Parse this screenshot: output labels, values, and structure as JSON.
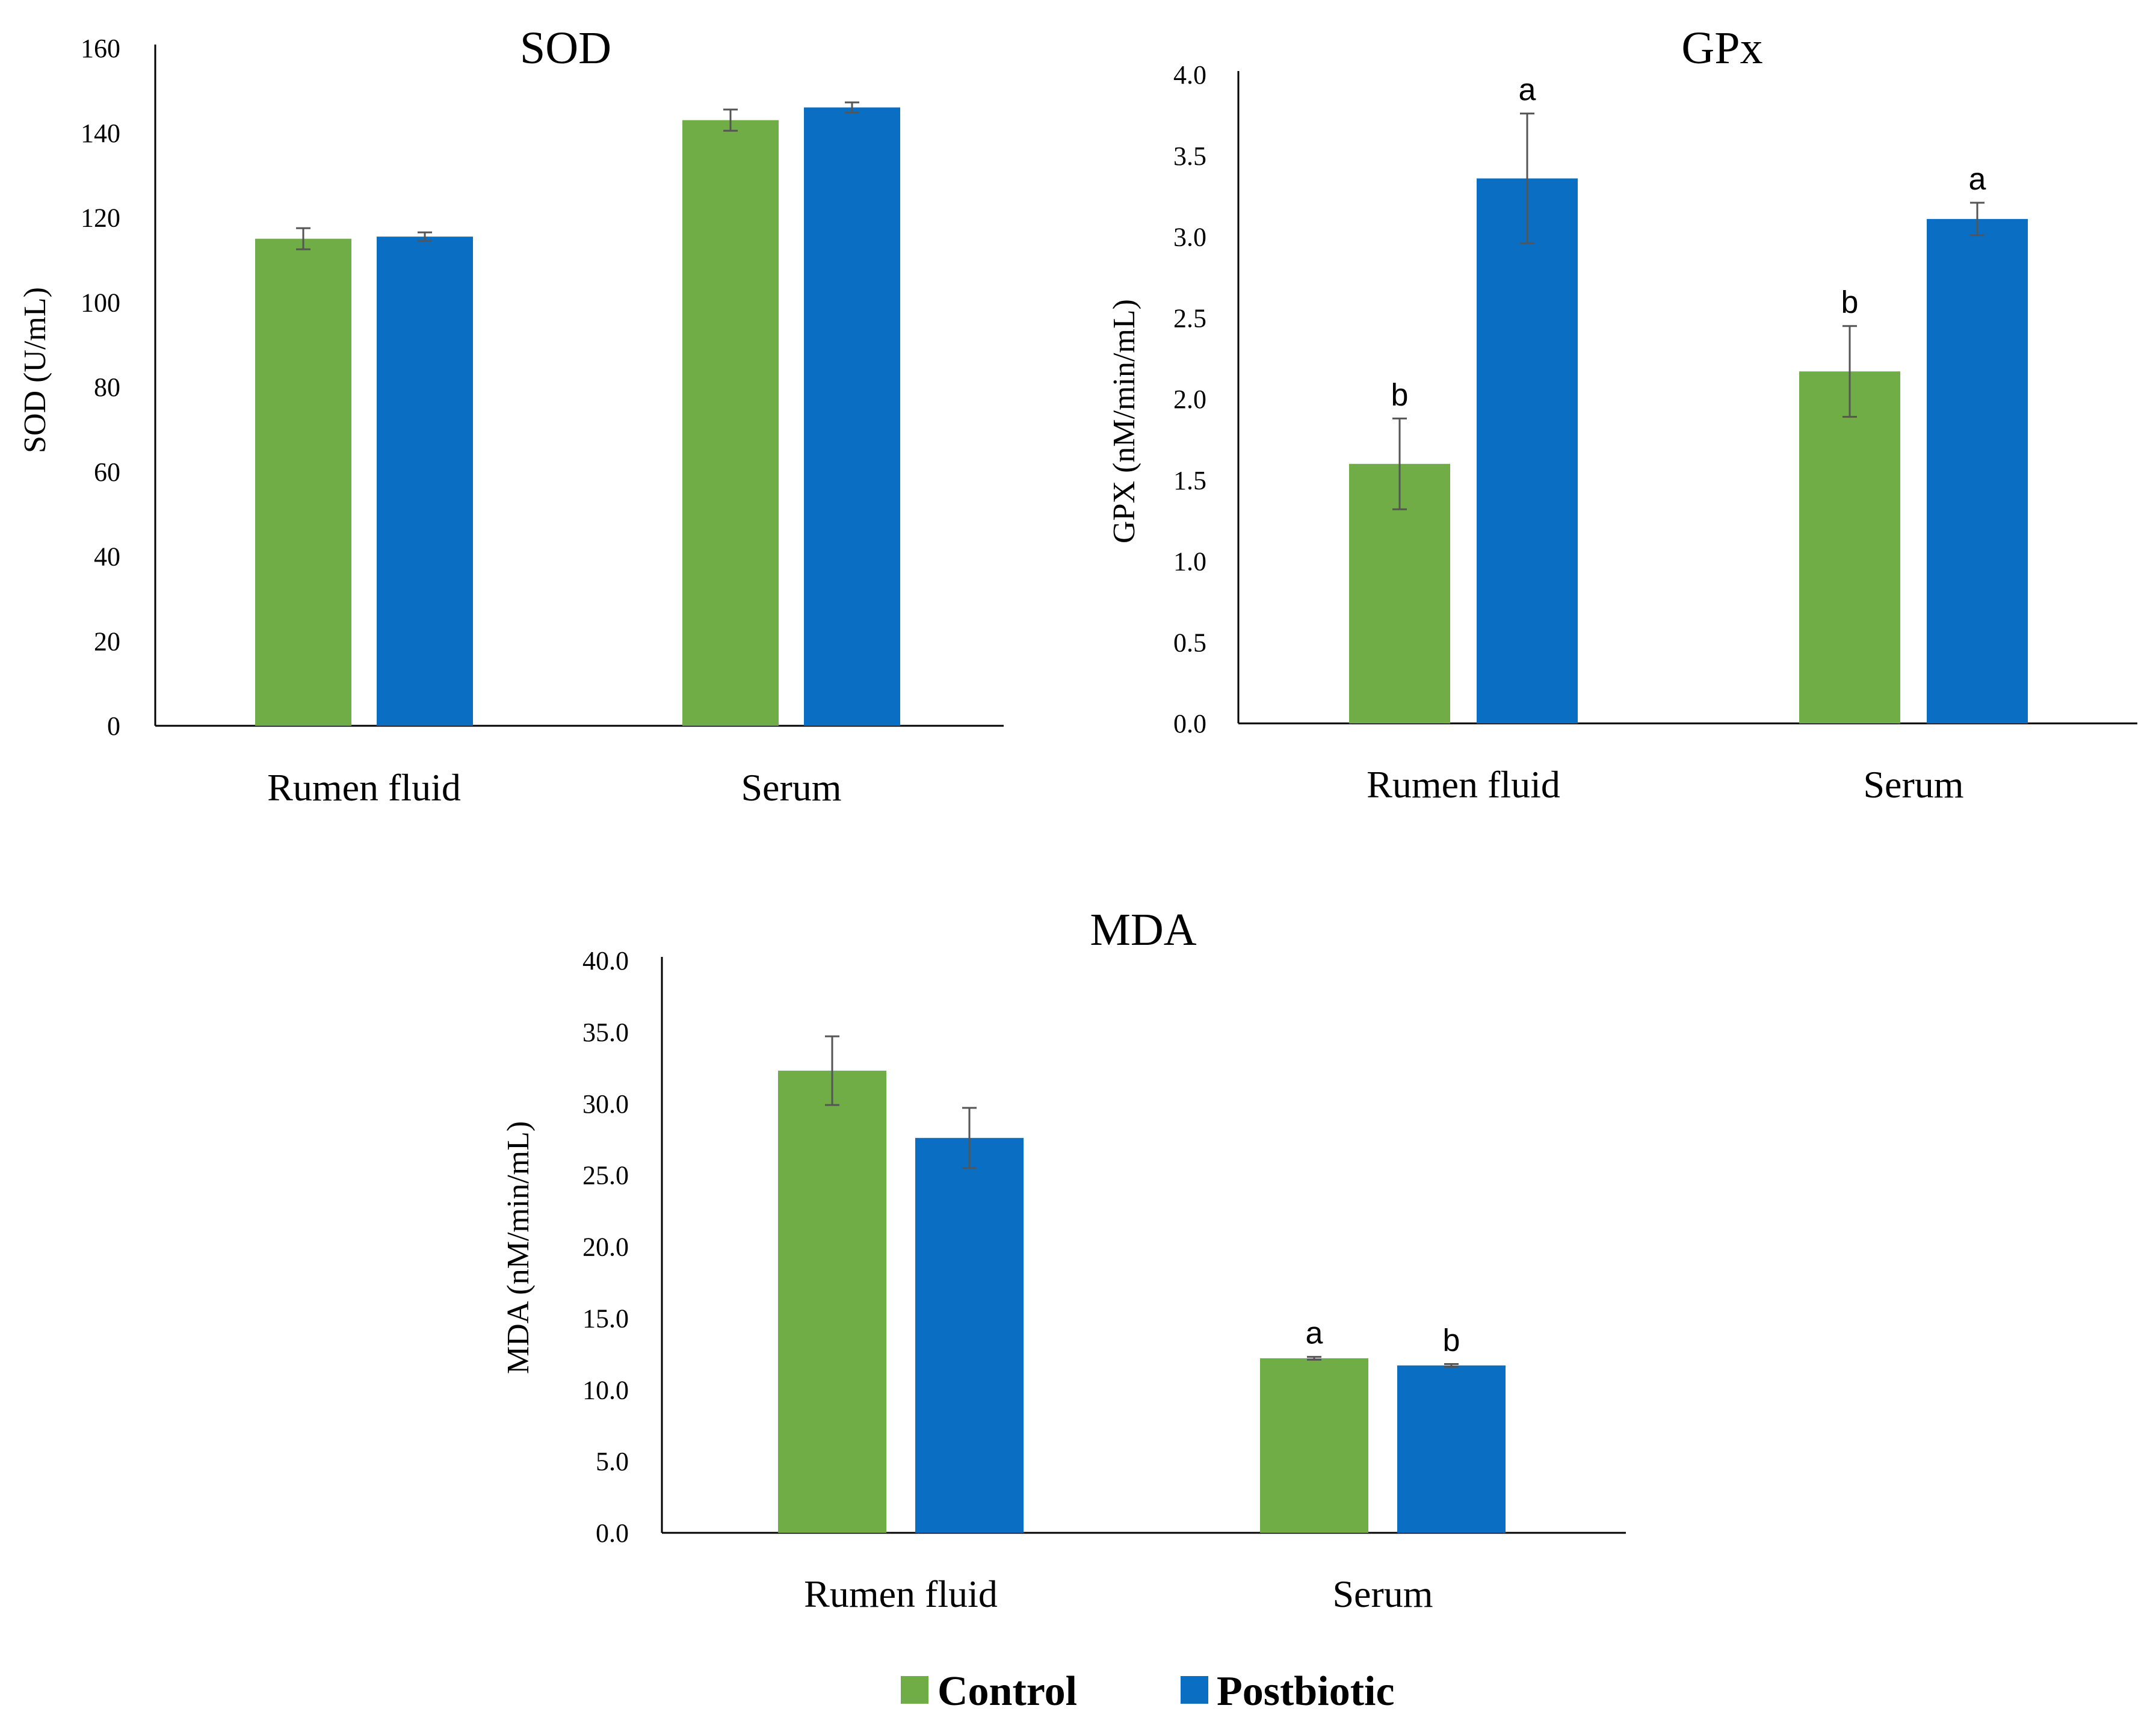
{
  "legend": [
    {
      "name": "Control",
      "color": "#70AD47"
    },
    {
      "name": "Postbiotic",
      "color": "#0A6FC2"
    }
  ],
  "chart_data": [
    {
      "id": "sod",
      "type": "bar",
      "title": "SOD",
      "ylabel": "SOD (U/mL)",
      "xlabel": "",
      "ylim": [
        0,
        160
      ],
      "yticks": [
        "0",
        "20",
        "40",
        "60",
        "80",
        "100",
        "120",
        "140",
        "160"
      ],
      "categories": [
        "Rumen fluid",
        "Serum"
      ],
      "series": [
        {
          "name": "Control",
          "values": [
            115,
            143
          ],
          "errors": [
            2.5,
            2.5
          ],
          "labels": [
            "",
            ""
          ]
        },
        {
          "name": "Postbiotic",
          "values": [
            115.5,
            146
          ],
          "errors": [
            1.0,
            1.2
          ],
          "labels": [
            "",
            ""
          ]
        }
      ]
    },
    {
      "id": "gpx",
      "type": "bar",
      "title": "GPx",
      "ylabel": "GPX (nM/min/mL)",
      "xlabel": "",
      "ylim": [
        0,
        4
      ],
      "yticks": [
        "0.0",
        "0.5",
        "1.0",
        "1.5",
        "2.0",
        "2.5",
        "3.0",
        "3.5",
        "4.0"
      ],
      "categories": [
        "Rumen fluid",
        "Serum"
      ],
      "series": [
        {
          "name": "Control",
          "values": [
            1.6,
            2.17
          ],
          "errors": [
            0.28,
            0.28
          ],
          "labels": [
            "b",
            "b"
          ]
        },
        {
          "name": "Postbiotic",
          "values": [
            3.36,
            3.11
          ],
          "errors": [
            0.4,
            0.1
          ],
          "labels": [
            "a",
            "a"
          ]
        }
      ]
    },
    {
      "id": "mda",
      "type": "bar",
      "title": "MDA",
      "ylabel": "MDA (nM/min/mL)",
      "xlabel": "",
      "ylim": [
        0,
        40
      ],
      "yticks": [
        "0.0",
        "5.0",
        "10.0",
        "15.0",
        "20.0",
        "25.0",
        "30.0",
        "35.0",
        "40.0"
      ],
      "categories": [
        "Rumen fluid",
        "Serum"
      ],
      "series": [
        {
          "name": "Control",
          "values": [
            32.3,
            12.2
          ],
          "errors": [
            2.4,
            0.1
          ],
          "labels": [
            "",
            "a"
          ]
        },
        {
          "name": "Postbiotic",
          "values": [
            27.6,
            11.7
          ],
          "errors": [
            2.1,
            0.1
          ],
          "labels": [
            "",
            "b"
          ]
        }
      ]
    }
  ]
}
